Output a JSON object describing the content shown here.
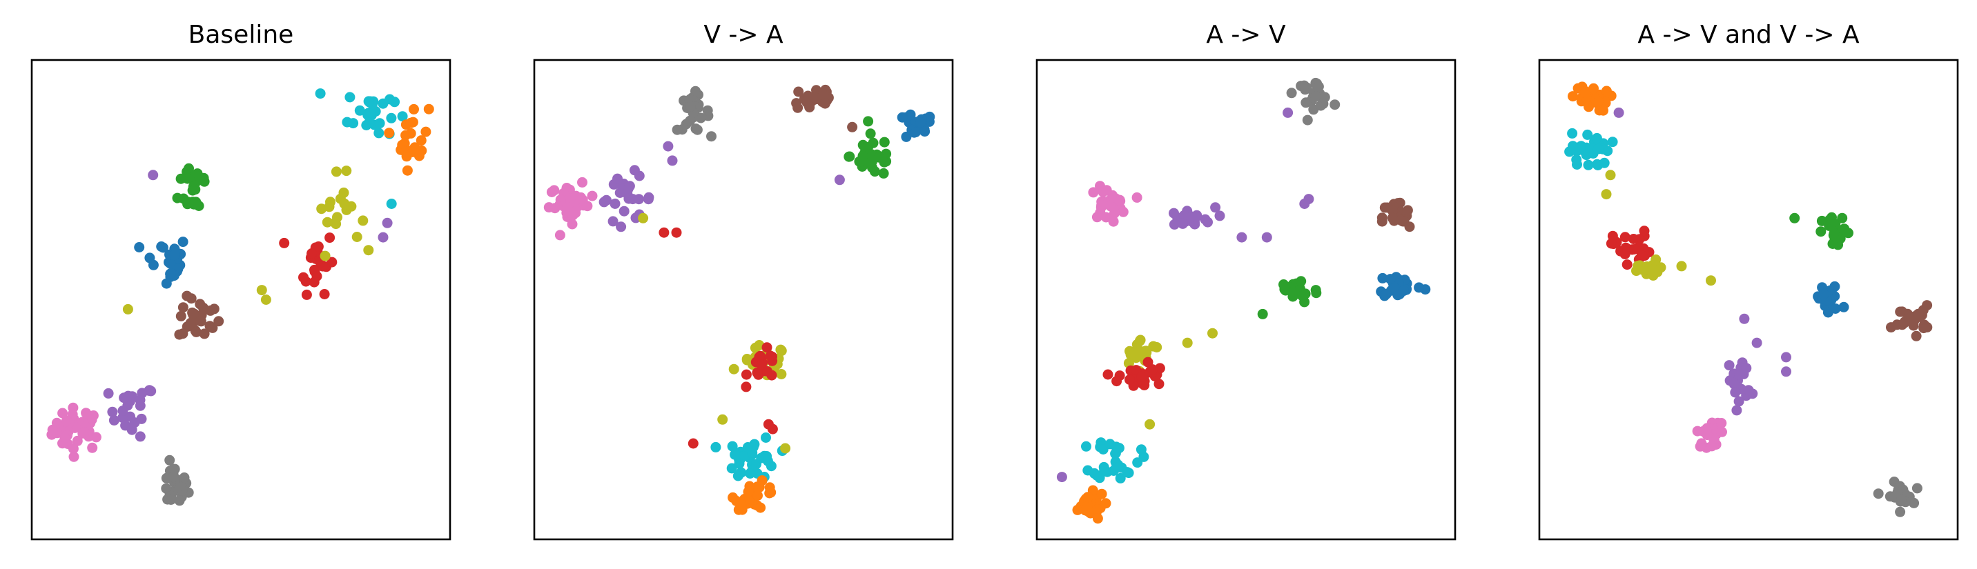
{
  "chart_data": [
    {
      "type": "scatter",
      "title": "Baseline",
      "xlabel": "",
      "ylabel": "",
      "grid": false,
      "axis_ticks": false,
      "clusters": [
        {
          "color": "#e377c2",
          "center": [
            0.11,
            0.23
          ],
          "spread": [
            0.055,
            0.04
          ],
          "n": 40
        },
        {
          "color": "#9467bd",
          "center": [
            0.24,
            0.27
          ],
          "spread": [
            0.05,
            0.05
          ],
          "n": 22
        },
        {
          "color": "#7f7f7f",
          "center": [
            0.34,
            0.11
          ],
          "spread": [
            0.03,
            0.04
          ],
          "n": 30
        },
        {
          "color": "#8c564b",
          "center": [
            0.4,
            0.46
          ],
          "spread": [
            0.045,
            0.04
          ],
          "n": 25
        },
        {
          "color": "#1f77b4",
          "center": [
            0.32,
            0.58
          ],
          "spread": [
            0.05,
            0.05
          ],
          "n": 24
        },
        {
          "color": "#2ca02c",
          "center": [
            0.39,
            0.74
          ],
          "spread": [
            0.035,
            0.06
          ],
          "n": 22
        },
        {
          "color": "#d62728",
          "center": [
            0.68,
            0.58
          ],
          "spread": [
            0.04,
            0.06
          ],
          "n": 22
        },
        {
          "color": "#bcbd22",
          "center": [
            0.73,
            0.68
          ],
          "spread": [
            0.05,
            0.07
          ],
          "n": 18
        },
        {
          "color": "#17becf",
          "center": [
            0.81,
            0.89
          ],
          "spread": [
            0.05,
            0.05
          ],
          "n": 25
        },
        {
          "color": "#ff7f0e",
          "center": [
            0.91,
            0.84
          ],
          "spread": [
            0.035,
            0.06
          ],
          "n": 22
        }
      ],
      "outliers": [
        {
          "color": "#9467bd",
          "point": [
            0.29,
            0.76
          ]
        },
        {
          "color": "#bcbd22",
          "point": [
            0.23,
            0.48
          ]
        },
        {
          "color": "#bcbd22",
          "point": [
            0.55,
            0.52
          ]
        },
        {
          "color": "#bcbd22",
          "point": [
            0.56,
            0.5
          ]
        },
        {
          "color": "#9467bd",
          "point": [
            0.85,
            0.66
          ]
        },
        {
          "color": "#9467bd",
          "point": [
            0.84,
            0.63
          ]
        },
        {
          "color": "#17becf",
          "point": [
            0.86,
            0.7
          ]
        },
        {
          "color": "#17becf",
          "point": [
            0.69,
            0.93
          ]
        }
      ]
    },
    {
      "type": "scatter",
      "title": "V -> A",
      "xlabel": "",
      "ylabel": "",
      "grid": false,
      "axis_ticks": false,
      "clusters": [
        {
          "color": "#e377c2",
          "center": [
            0.09,
            0.7
          ],
          "spread": [
            0.05,
            0.035
          ],
          "n": 34
        },
        {
          "color": "#9467bd",
          "center": [
            0.22,
            0.71
          ],
          "spread": [
            0.06,
            0.04
          ],
          "n": 22
        },
        {
          "color": "#7f7f7f",
          "center": [
            0.38,
            0.89
          ],
          "spread": [
            0.035,
            0.035
          ],
          "n": 26
        },
        {
          "color": "#8c564b",
          "center": [
            0.67,
            0.92
          ],
          "spread": [
            0.05,
            0.03
          ],
          "n": 24
        },
        {
          "color": "#2ca02c",
          "center": [
            0.81,
            0.8
          ],
          "spread": [
            0.05,
            0.04
          ],
          "n": 28
        },
        {
          "color": "#1f77b4",
          "center": [
            0.91,
            0.86
          ],
          "spread": [
            0.04,
            0.025
          ],
          "n": 22
        },
        {
          "color": "#bcbd22",
          "center": [
            0.55,
            0.37
          ],
          "spread": [
            0.05,
            0.03
          ],
          "n": 24
        },
        {
          "color": "#d62728",
          "center": [
            0.55,
            0.36
          ],
          "spread": [
            0.035,
            0.03
          ],
          "n": 18
        },
        {
          "color": "#17becf",
          "center": [
            0.52,
            0.17
          ],
          "spread": [
            0.055,
            0.04
          ],
          "n": 34
        },
        {
          "color": "#ff7f0e",
          "center": [
            0.53,
            0.09
          ],
          "spread": [
            0.045,
            0.025
          ],
          "n": 28
        }
      ],
      "outliers": [
        {
          "color": "#9467bd",
          "point": [
            0.32,
            0.82
          ]
        },
        {
          "color": "#9467bd",
          "point": [
            0.33,
            0.79
          ]
        },
        {
          "color": "#9467bd",
          "point": [
            0.24,
            0.77
          ]
        },
        {
          "color": "#d62728",
          "point": [
            0.34,
            0.64
          ]
        },
        {
          "color": "#d62728",
          "point": [
            0.31,
            0.64
          ]
        },
        {
          "color": "#bcbd22",
          "point": [
            0.26,
            0.67
          ]
        },
        {
          "color": "#9467bd",
          "point": [
            0.73,
            0.75
          ]
        },
        {
          "color": "#8c564b",
          "point": [
            0.76,
            0.86
          ]
        },
        {
          "color": "#d62728",
          "point": [
            0.38,
            0.2
          ]
        },
        {
          "color": "#d62728",
          "point": [
            0.56,
            0.24
          ]
        },
        {
          "color": "#d62728",
          "point": [
            0.57,
            0.23
          ]
        },
        {
          "color": "#bcbd22",
          "point": [
            0.45,
            0.25
          ]
        },
        {
          "color": "#bcbd22",
          "point": [
            0.6,
            0.19
          ]
        }
      ]
    },
    {
      "type": "scatter",
      "title": "A -> V",
      "xlabel": "",
      "ylabel": "",
      "grid": false,
      "axis_ticks": false,
      "clusters": [
        {
          "color": "#7f7f7f",
          "center": [
            0.66,
            0.93
          ],
          "spread": [
            0.04,
            0.025
          ],
          "n": 26
        },
        {
          "color": "#e377c2",
          "center": [
            0.17,
            0.7
          ],
          "spread": [
            0.04,
            0.03
          ],
          "n": 26
        },
        {
          "color": "#9467bd",
          "center": [
            0.36,
            0.67
          ],
          "spread": [
            0.06,
            0.02
          ],
          "n": 20
        },
        {
          "color": "#8c564b",
          "center": [
            0.86,
            0.67
          ],
          "spread": [
            0.03,
            0.035
          ],
          "n": 22
        },
        {
          "color": "#2ca02c",
          "center": [
            0.62,
            0.52
          ],
          "spread": [
            0.05,
            0.025
          ],
          "n": 26
        },
        {
          "color": "#1f77b4",
          "center": [
            0.87,
            0.53
          ],
          "spread": [
            0.05,
            0.025
          ],
          "n": 26
        },
        {
          "color": "#bcbd22",
          "center": [
            0.25,
            0.39
          ],
          "spread": [
            0.045,
            0.025
          ],
          "n": 20
        },
        {
          "color": "#d62728",
          "center": [
            0.25,
            0.34
          ],
          "spread": [
            0.05,
            0.03
          ],
          "n": 26
        },
        {
          "color": "#17becf",
          "center": [
            0.19,
            0.17
          ],
          "spread": [
            0.05,
            0.04
          ],
          "n": 30
        },
        {
          "color": "#ff7f0e",
          "center": [
            0.12,
            0.07
          ],
          "spread": [
            0.04,
            0.025
          ],
          "n": 30
        }
      ],
      "outliers": [
        {
          "color": "#9467bd",
          "point": [
            0.6,
            0.89
          ]
        },
        {
          "color": "#9467bd",
          "point": [
            0.49,
            0.63
          ]
        },
        {
          "color": "#9467bd",
          "point": [
            0.55,
            0.63
          ]
        },
        {
          "color": "#9467bd",
          "point": [
            0.65,
            0.71
          ]
        },
        {
          "color": "#9467bd",
          "point": [
            0.64,
            0.7
          ]
        },
        {
          "color": "#2ca02c",
          "point": [
            0.54,
            0.47
          ]
        },
        {
          "color": "#bcbd22",
          "point": [
            0.36,
            0.41
          ]
        },
        {
          "color": "#bcbd22",
          "point": [
            0.42,
            0.43
          ]
        },
        {
          "color": "#bcbd22",
          "point": [
            0.27,
            0.24
          ]
        },
        {
          "color": "#9467bd",
          "point": [
            0.06,
            0.13
          ]
        }
      ]
    },
    {
      "type": "scatter",
      "title": "A -> V and V -> A",
      "xlabel": "",
      "ylabel": "",
      "grid": false,
      "axis_ticks": false,
      "clusters": [
        {
          "color": "#ff7f0e",
          "center": [
            0.12,
            0.92
          ],
          "spread": [
            0.04,
            0.025
          ],
          "n": 28
        },
        {
          "color": "#17becf",
          "center": [
            0.12,
            0.81
          ],
          "spread": [
            0.045,
            0.035
          ],
          "n": 28
        },
        {
          "color": "#d62728",
          "center": [
            0.22,
            0.61
          ],
          "spread": [
            0.04,
            0.03
          ],
          "n": 26
        },
        {
          "color": "#bcbd22",
          "center": [
            0.26,
            0.56
          ],
          "spread": [
            0.04,
            0.02
          ],
          "n": 16
        },
        {
          "color": "#2ca02c",
          "center": [
            0.71,
            0.64
          ],
          "spread": [
            0.03,
            0.03
          ],
          "n": 22
        },
        {
          "color": "#1f77b4",
          "center": [
            0.69,
            0.5
          ],
          "spread": [
            0.03,
            0.03
          ],
          "n": 22
        },
        {
          "color": "#8c564b",
          "center": [
            0.89,
            0.46
          ],
          "spread": [
            0.04,
            0.025
          ],
          "n": 24
        },
        {
          "color": "#9467bd",
          "center": [
            0.48,
            0.33
          ],
          "spread": [
            0.025,
            0.05
          ],
          "n": 18
        },
        {
          "color": "#e377c2",
          "center": [
            0.41,
            0.22
          ],
          "spread": [
            0.03,
            0.025
          ],
          "n": 24
        },
        {
          "color": "#7f7f7f",
          "center": [
            0.86,
            0.09
          ],
          "spread": [
            0.03,
            0.025
          ],
          "n": 26
        }
      ],
      "outliers": [
        {
          "color": "#9467bd",
          "point": [
            0.19,
            0.89
          ]
        },
        {
          "color": "#bcbd22",
          "point": [
            0.16,
            0.72
          ]
        },
        {
          "color": "#bcbd22",
          "point": [
            0.17,
            0.76
          ]
        },
        {
          "color": "#bcbd22",
          "point": [
            0.34,
            0.57
          ]
        },
        {
          "color": "#bcbd22",
          "point": [
            0.41,
            0.54
          ]
        },
        {
          "color": "#2ca02c",
          "point": [
            0.61,
            0.67
          ]
        },
        {
          "color": "#9467bd",
          "point": [
            0.49,
            0.46
          ]
        },
        {
          "color": "#9467bd",
          "point": [
            0.52,
            0.41
          ]
        },
        {
          "color": "#9467bd",
          "point": [
            0.59,
            0.38
          ]
        },
        {
          "color": "#9467bd",
          "point": [
            0.59,
            0.35
          ]
        }
      ]
    }
  ]
}
